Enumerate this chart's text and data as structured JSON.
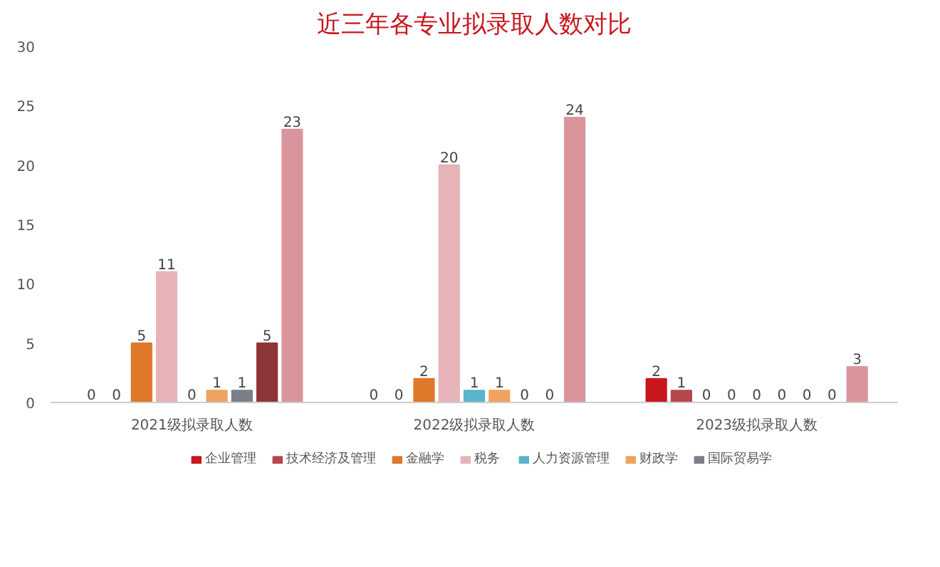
{
  "chart_data": {
    "type": "bar",
    "title": "近三年各专业拟录取人数对比",
    "categories": [
      "2021级拟录取人数",
      "2022级拟录取人数",
      "2023级拟录取人数"
    ],
    "series": [
      {
        "name": "企业管理",
        "color": "#c8161d",
        "values": [
          0,
          0,
          2
        ]
      },
      {
        "name": "技术经济及管理",
        "color": "#b5474f",
        "values": [
          0,
          0,
          1
        ]
      },
      {
        "name": "金融学",
        "color": "#e0782a",
        "values": [
          5,
          2,
          0
        ]
      },
      {
        "name": "税务",
        "color": "#e6b3b9",
        "values": [
          11,
          20,
          0
        ]
      },
      {
        "name": "人力资源管理",
        "color": "#5ab4cc",
        "values": [
          0,
          1,
          0
        ]
      },
      {
        "name": "财政学",
        "color": "#f0a35e",
        "values": [
          1,
          1,
          0
        ]
      },
      {
        "name": "国际贸易学",
        "color": "#7b7f88",
        "values": [
          1,
          0,
          0
        ]
      },
      {
        "color": "#8e3537",
        "values": [
          5,
          0,
          0
        ]
      },
      {
        "color": "#d9959b",
        "values": [
          23,
          24,
          3
        ]
      }
    ],
    "ylim": [
      0,
      30
    ],
    "yticks": [
      0,
      5,
      10,
      15,
      20,
      25,
      30
    ],
    "grid": false,
    "legend": "bottom",
    "data_labels": true
  }
}
